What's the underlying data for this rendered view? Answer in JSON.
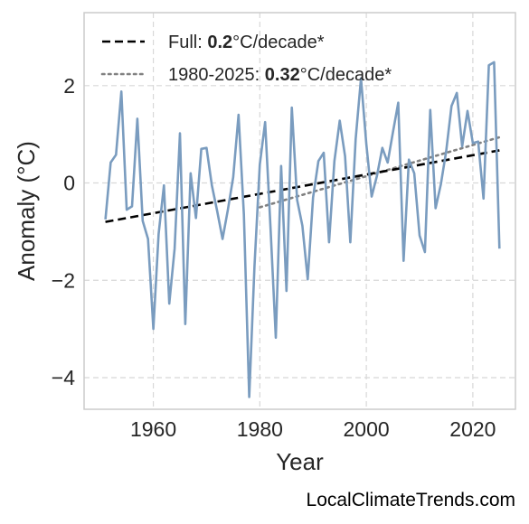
{
  "chart_data": {
    "type": "line",
    "xlabel": "Year",
    "ylabel": "Anomaly (°C)",
    "xlim": [
      1947,
      2028
    ],
    "ylim": [
      -4.65,
      3.5
    ],
    "xticks": [
      1960,
      1980,
      2000,
      2020
    ],
    "yticks": [
      -4,
      -2,
      0,
      2
    ],
    "grid": true,
    "legend_position": "top-left",
    "colors": {
      "series": "#7a9cbf",
      "trend_full": "#000000",
      "trend_recent": "#808080",
      "grid": "#d8d8d8",
      "frame": "#cccccc"
    },
    "series": [
      {
        "x": [
          1951,
          1952,
          1953,
          1954,
          1955,
          1956,
          1957,
          1958,
          1959,
          1960,
          1961,
          1962,
          1963,
          1964,
          1965,
          1966,
          1967,
          1968,
          1969,
          1970,
          1971,
          1972,
          1973,
          1974,
          1975,
          1976,
          1977,
          1978,
          1979,
          1980,
          1981,
          1982,
          1983,
          1984,
          1985,
          1986,
          1987,
          1988,
          1989,
          1990,
          1991,
          1992,
          1993,
          1994,
          1995,
          1996,
          1997,
          1998,
          1999,
          2000,
          2001,
          2002,
          2003,
          2004,
          2005,
          2006,
          2007,
          2008,
          2009,
          2010,
          2011,
          2012,
          2013,
          2014,
          2015,
          2016,
          2017,
          2018,
          2019,
          2020,
          2021,
          2022,
          2023,
          2024,
          2025
        ],
        "values": [
          -0.75,
          0.42,
          0.58,
          1.88,
          -0.55,
          -0.48,
          1.32,
          -0.78,
          -1.15,
          -3.0,
          -1.05,
          -0.05,
          -2.48,
          -1.35,
          1.02,
          -2.9,
          0.2,
          -0.72,
          0.7,
          0.72,
          -0.05,
          -0.58,
          -1.15,
          -0.55,
          0.12,
          1.4,
          -0.65,
          -4.4,
          -1.72,
          0.38,
          1.25,
          -0.9,
          -3.18,
          0.35,
          -2.22,
          1.55,
          -0.35,
          -0.88,
          -1.98,
          -0.3,
          0.45,
          0.62,
          -1.22,
          0.45,
          1.28,
          0.55,
          -1.22,
          0.9,
          2.15,
          0.8,
          -0.28,
          0.15,
          0.72,
          0.42,
          1.05,
          1.65,
          -1.6,
          0.48,
          0.2,
          -1.08,
          -1.42,
          1.5,
          -0.52,
          -0.02,
          0.65,
          1.58,
          1.85,
          0.75,
          1.48,
          0.82,
          0.85,
          -0.32,
          2.42,
          2.48,
          -1.35
        ]
      }
    ],
    "trends": [
      {
        "x": [
          1951,
          2025
        ],
        "values": [
          -0.8,
          0.67
        ]
      },
      {
        "x": [
          1980,
          2025
        ],
        "values": [
          -0.5,
          0.94
        ]
      }
    ],
    "legend": [
      {
        "prefix": "Full: ",
        "value": "0.2",
        "suffix": "°C/decade*"
      },
      {
        "prefix": "1980-2025: ",
        "value": "0.32",
        "suffix": "°C/decade*"
      }
    ]
  },
  "watermark": "LocalClimateTrends.com"
}
